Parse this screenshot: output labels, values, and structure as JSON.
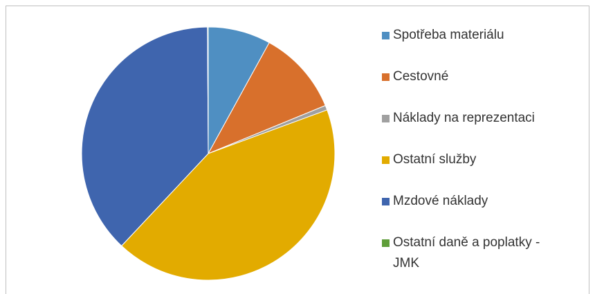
{
  "chart_data": {
    "type": "pie",
    "categories": [
      "Spotřeba materiálu",
      "Cestovné",
      "Náklady na reprezentaci",
      "Ostatní služby",
      "Mzdové náklady",
      "Ostatní daně a poplatky - JMK"
    ],
    "values": [
      8.0,
      10.8,
      0.6,
      42.6,
      37.9,
      0.1
    ],
    "colors": [
      "#4f8fc2",
      "#d8702c",
      "#a0a0a0",
      "#e2ab00",
      "#3f65ae",
      "#5f9e3a"
    ],
    "legend": "right"
  }
}
